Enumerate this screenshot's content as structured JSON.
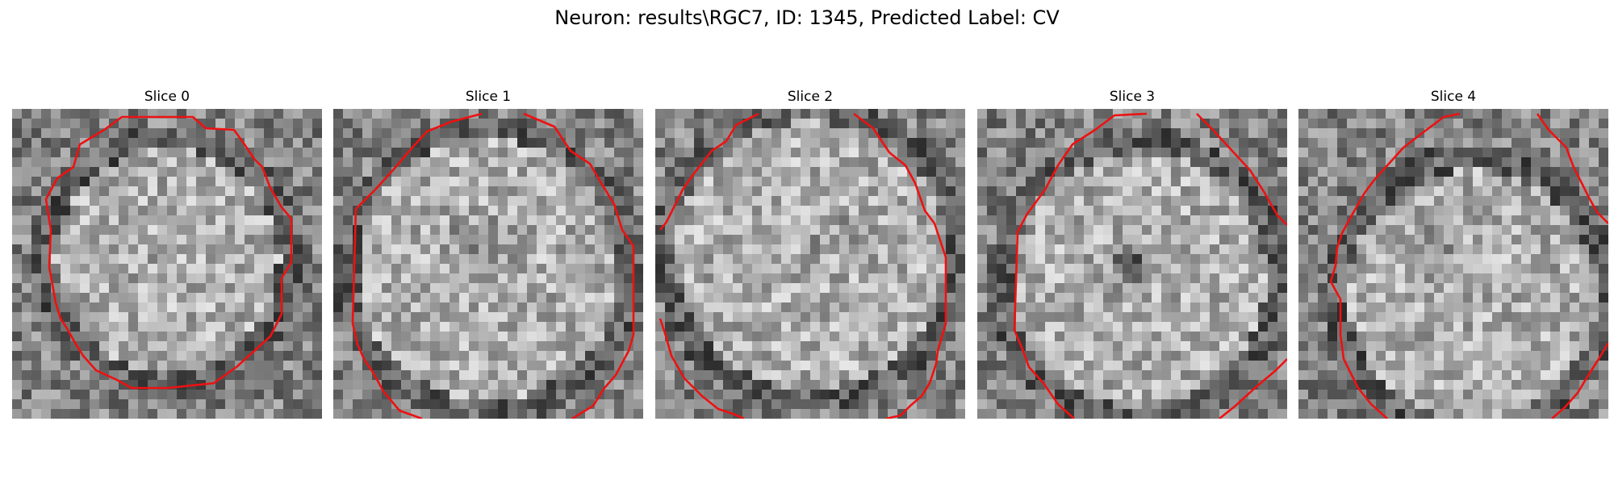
{
  "figure": {
    "title": "Neuron: results\\RGC7, ID: 1345, Predicted Label: CV"
  },
  "panels": [
    {
      "title": "Slice 0",
      "contour_color": "#ee1111"
    },
    {
      "title": "Slice 1",
      "contour_color": "#ee1111"
    },
    {
      "title": "Slice 2",
      "contour_color": "#ee1111"
    },
    {
      "title": "Slice 3",
      "contour_color": "#ee1111"
    },
    {
      "title": "Slice 4",
      "contour_color": "#ee1111"
    }
  ],
  "image": {
    "colormap": "gray",
    "grid_size": 32,
    "overlay": "segmentation contour (red)"
  }
}
